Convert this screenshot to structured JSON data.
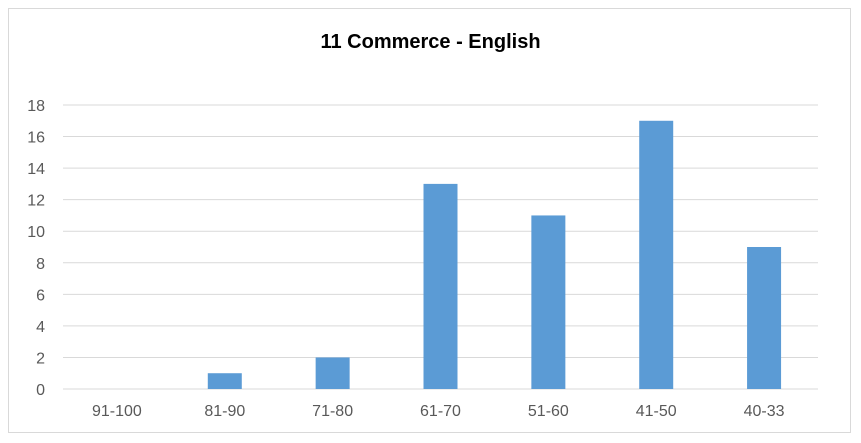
{
  "chart_data": {
    "type": "bar",
    "title": "11 Commerce - English",
    "xlabel": "",
    "ylabel": "",
    "categories": [
      "91-100",
      "81-90",
      "71-80",
      "61-70",
      "51-60",
      "41-50",
      "40-33"
    ],
    "values": [
      0,
      1,
      2,
      13,
      11,
      17,
      9
    ],
    "ylim": [
      0,
      18
    ],
    "yticks": [
      "0",
      "2",
      "4",
      "6",
      "8",
      "10",
      "12",
      "14",
      "16",
      "18"
    ],
    "grid": true,
    "legend": "none",
    "colors": {
      "bar": "#5b9bd5",
      "grid": "#d9d9d9",
      "axis_text": "#595959"
    }
  }
}
